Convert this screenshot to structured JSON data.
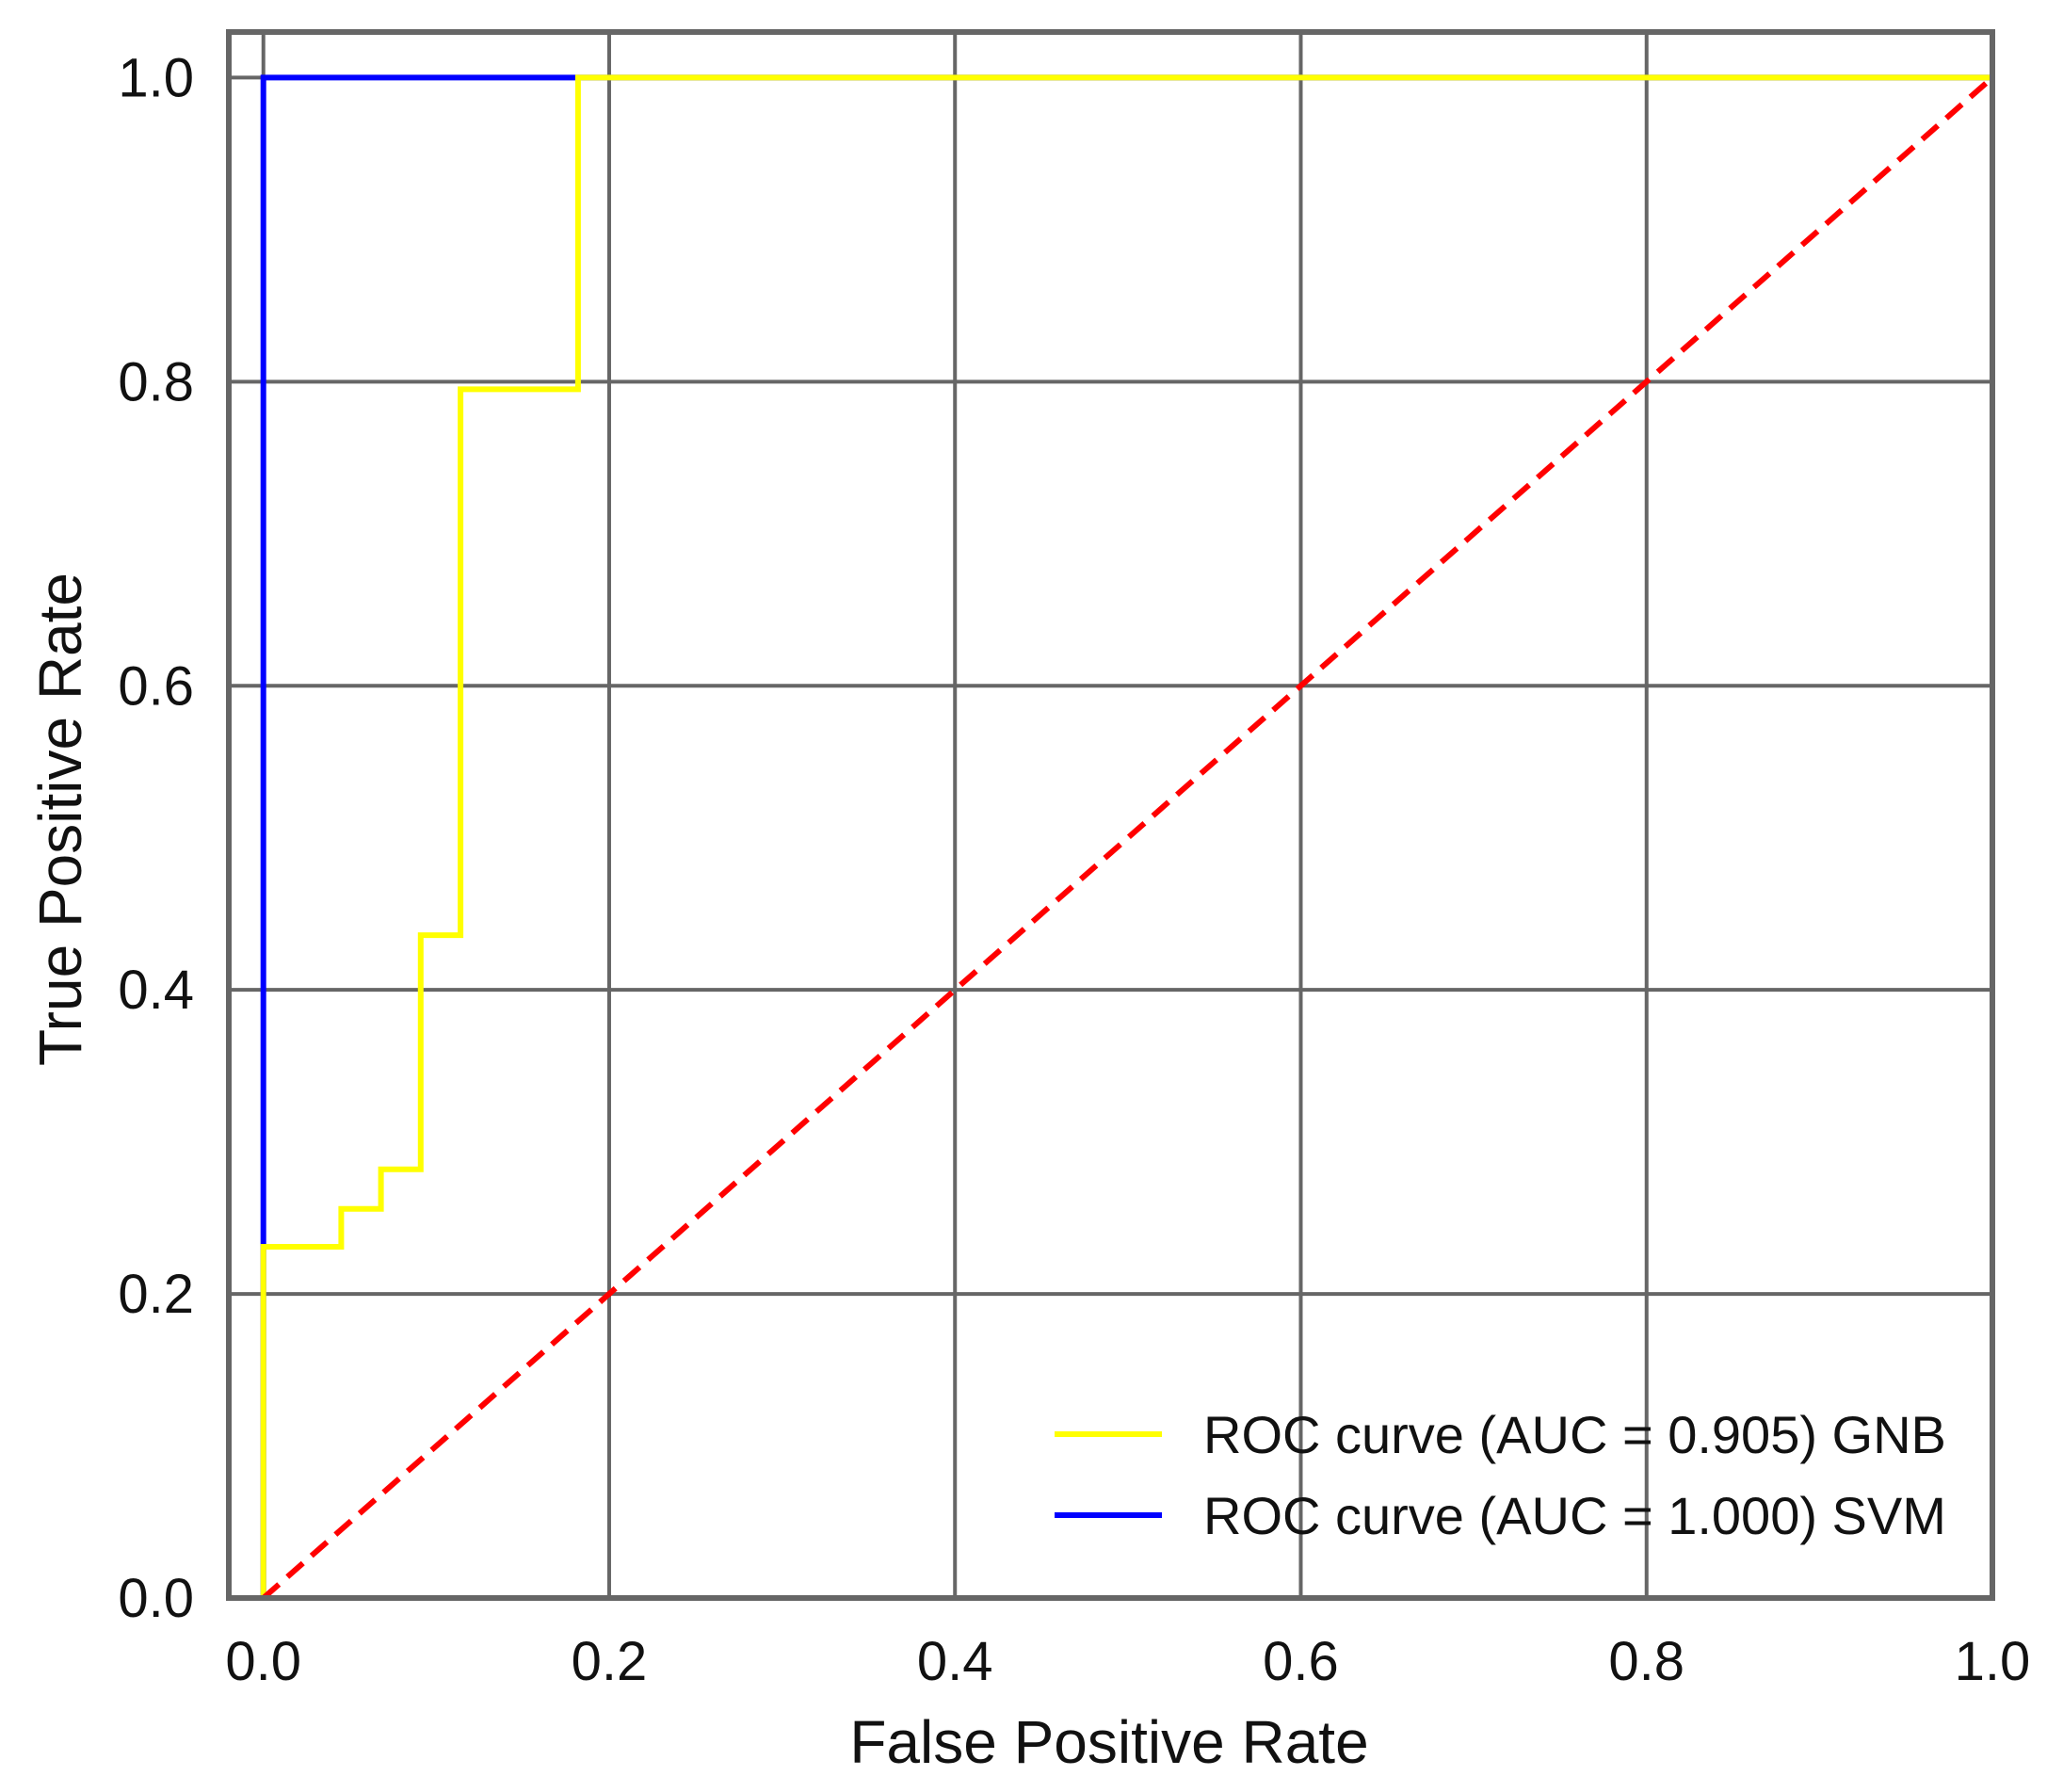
{
  "chart_data": {
    "type": "line",
    "title": "",
    "xlabel": "False Positive Rate",
    "ylabel": "True Positive Rate",
    "xlim": [
      -0.02,
      1.0
    ],
    "ylim": [
      0.0,
      1.03
    ],
    "x_ticks": [
      0.0,
      0.2,
      0.4,
      0.6,
      0.8,
      1.0
    ],
    "y_ticks": [
      0.0,
      0.2,
      0.4,
      0.6,
      0.8,
      1.0
    ],
    "x_tick_labels": [
      "0.0",
      "0.2",
      "0.4",
      "0.6",
      "0.8",
      "1.0"
    ],
    "y_tick_labels": [
      "0.0",
      "0.2",
      "0.4",
      "0.6",
      "0.8",
      "1.0"
    ],
    "grid": true,
    "legend_position": "bottom-right",
    "series": [
      {
        "name": "ROC curve (AUC = 0.905) GNB",
        "color": "#ffff00",
        "style": "solid",
        "step": true,
        "x": [
          0.0,
          0.0,
          0.045,
          0.045,
          0.068,
          0.068,
          0.091,
          0.091,
          0.114,
          0.114,
          0.182,
          0.182,
          1.0
        ],
        "y": [
          0.0,
          0.231,
          0.231,
          0.256,
          0.256,
          0.282,
          0.282,
          0.436,
          0.436,
          0.795,
          0.795,
          1.0,
          1.0
        ]
      },
      {
        "name": "ROC curve (AUC = 1.000) SVM",
        "color": "#0000ff",
        "style": "solid",
        "step": true,
        "x": [
          0.0,
          0.0,
          1.0
        ],
        "y": [
          0.0,
          1.0,
          1.0
        ]
      },
      {
        "color": "#ff0000",
        "style": "dashed",
        "step": false,
        "x": [
          0.0,
          1.0
        ],
        "y": [
          0.0,
          1.0
        ]
      }
    ],
    "legend": [
      {
        "label": "ROC curve (AUC = 0.905) GNB",
        "color": "#ffff00"
      },
      {
        "label": "ROC curve (AUC = 1.000) SVM",
        "color": "#0000ff"
      }
    ],
    "colors": {
      "frame": "#666666",
      "grid": "#666666",
      "background": "#ffffff"
    }
  }
}
